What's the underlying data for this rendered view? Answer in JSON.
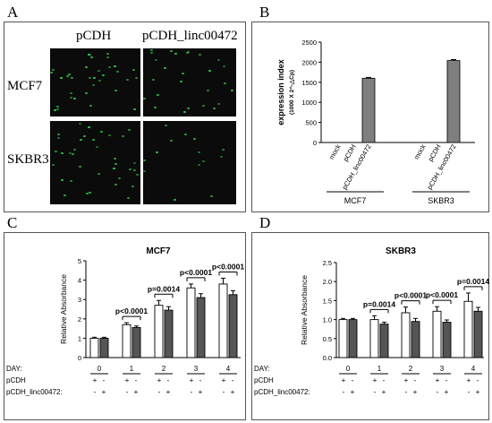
{
  "panel_a": {
    "letter": "A",
    "col_headers": [
      "pCDH",
      "pCDH_linc00472"
    ],
    "row_headers": [
      "MCF7",
      "SKBR3"
    ]
  },
  "panel_b": {
    "letter": "B",
    "ylabel": "expression index",
    "ylabel_sub": "(1000 X 2^-△Cp)",
    "ytick_labels": [
      "0",
      "500",
      "1000",
      "1500",
      "2000",
      "2500"
    ],
    "bar_labels": [
      "mock",
      "pCDH",
      "pCDH_linc00472",
      "mock",
      "pCDH",
      "pCDH_linc00472"
    ],
    "group_labels": [
      "MCF7",
      "SKBR3"
    ]
  },
  "panel_c": {
    "letter": "C",
    "title": "MCF7",
    "ylabel": "Relative Absorbance",
    "ytick_labels": [
      "0",
      "1",
      "2",
      "3",
      "4",
      "5"
    ],
    "day_label": "DAY:",
    "days": [
      "0",
      "1",
      "2",
      "3",
      "4"
    ],
    "row1_label": "pCDH",
    "row2_label": "pCDH_linc00472:",
    "pvalues": [
      "p<0.0001",
      "p=0.0014",
      "p<0.0001",
      "p<0.0001"
    ]
  },
  "panel_d": {
    "letter": "D",
    "title": "SKBR3",
    "ylabel": "Relative Absorbance",
    "ytick_labels": [
      "0.0",
      "0.5",
      "1.0",
      "1.5",
      "2.0",
      "2.5"
    ],
    "day_label": "DAY:",
    "days": [
      "0",
      "1",
      "2",
      "3",
      "4"
    ],
    "row1_label": "pCDH",
    "row2_label": "pCDH_linc00472:",
    "pvalues": [
      "p=0.0014",
      "p<0.0001",
      "p<0.0001",
      "p=0.0014"
    ]
  },
  "signs": {
    "plus": "+",
    "minus": "-"
  },
  "colors": {
    "white_bar": "#ffffff",
    "grey_bar": "#7f7f7f",
    "dark_bar": "#555555",
    "green": "#2fd24a"
  },
  "chart_data": [
    {
      "type": "bar",
      "panel": "B",
      "categories": [
        "mock",
        "pCDH",
        "pCDH_linc00472",
        "mock",
        "pCDH",
        "pCDH_linc00472"
      ],
      "groups": [
        "MCF7",
        "MCF7",
        "MCF7",
        "SKBR3",
        "SKBR3",
        "SKBR3"
      ],
      "values": [
        0,
        0,
        1600,
        0,
        0,
        2040
      ],
      "errors": [
        0,
        0,
        20,
        0,
        0,
        25
      ],
      "ylabel": "expression index",
      "ylim": [
        0,
        2500
      ]
    },
    {
      "type": "bar",
      "panel": "C",
      "title": "MCF7",
      "categories": [
        "0",
        "1",
        "2",
        "3",
        "4"
      ],
      "series": [
        {
          "values": [
            1.0,
            1.7,
            2.7,
            3.6,
            3.8
          ],
          "errors": [
            0.05,
            0.1,
            0.25,
            0.2,
            0.3
          ]
        },
        {
          "values": [
            1.0,
            1.55,
            2.45,
            3.1,
            3.25
          ],
          "errors": [
            0.05,
            0.08,
            0.18,
            0.2,
            0.2
          ]
        }
      ],
      "ylabel": "Relative Absorbance",
      "ylim": [
        0,
        5
      ]
    },
    {
      "type": "bar",
      "panel": "D",
      "title": "SKBR3",
      "categories": [
        "0",
        "1",
        "2",
        "3",
        "4"
      ],
      "series": [
        {
          "values": [
            1.0,
            1.0,
            1.18,
            1.22,
            1.48
          ],
          "errors": [
            0.03,
            0.1,
            0.15,
            0.12,
            0.22
          ]
        },
        {
          "values": [
            1.0,
            0.88,
            0.95,
            0.93,
            1.22
          ],
          "errors": [
            0.03,
            0.05,
            0.08,
            0.06,
            0.1
          ]
        }
      ],
      "ylabel": "Relative Absorbance",
      "ylim": [
        0,
        2.5
      ]
    }
  ]
}
